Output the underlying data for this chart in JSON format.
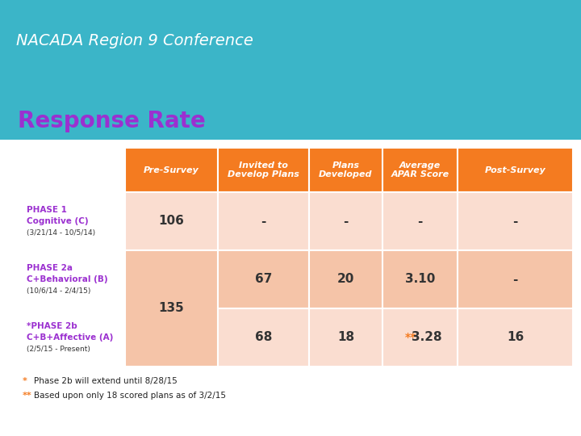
{
  "title": "NACADA Region 9 Conference",
  "subtitle": "Response Rate",
  "header_bg": "#F47B20",
  "header_text_color": "#FFFFFF",
  "row1_label_line1": "PHASE 1",
  "row1_label_line2": "Cognitive (C)",
  "row1_label_line3": "(3/21/14 - 10/5/14)",
  "row2_label_line1": "PHASE 2a",
  "row2_label_line2": "C+Behavioral (B)",
  "row2_label_line3": "(10/6/14 - 2/4/15)",
  "row3_label_line1": "*PHASE 2b",
  "row3_label_line2": "C+B+Affective (A)",
  "row3_label_line3": "(2/5/15 - Present)",
  "col_headers": [
    "Pre-Survey",
    "Invited to\nDevelop Plans",
    "Plans\nDeveloped",
    "Average\nAPAR Score",
    "Post-Survey"
  ],
  "row1_data": [
    "106",
    "-",
    "-",
    "-",
    "-"
  ],
  "row2_data": [
    "135",
    "67",
    "20",
    "3.10",
    "-"
  ],
  "row3_data": [
    "",
    "68",
    "18",
    "**3.28",
    "16"
  ],
  "row_bg_light": "#FADDD0",
  "row_bg_medium": "#F5C4A8",
  "teal_color": "#3BB5C8",
  "slide_bg": "#FFFFFF",
  "subtitle_color": "#9B30D0",
  "label_bold_color": "#9B30D0",
  "label_normal_color": "#333333",
  "data_text_color": "#333333",
  "footnote_star_color": "#F47B20",
  "footnote1": "Phase 2b will extend until 8/28/15",
  "footnote2": "Based upon only 18 scored plans as of 3/2/15",
  "double_star_color": "#F47B20"
}
